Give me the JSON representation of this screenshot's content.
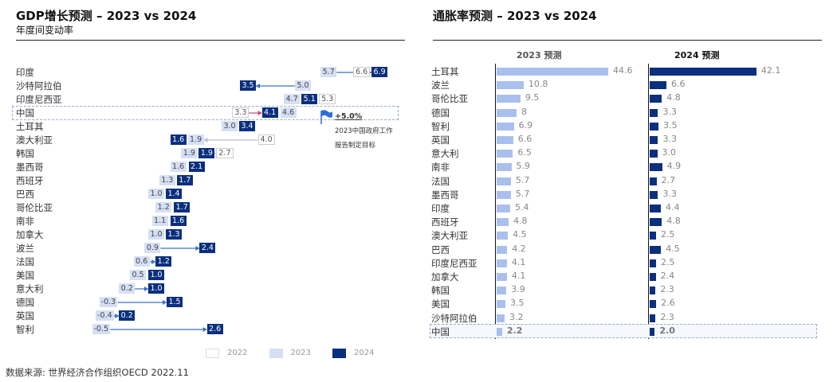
{
  "source": "数据来源: 世界经济合作组织OECD 2022.11",
  "chart_data": [
    {
      "type": "dot-range",
      "title": "GDP增长预测 – 2023 vs 2024",
      "subtitle": "年度间变动率",
      "legend": [
        "2022",
        "2023",
        "2024"
      ],
      "annotation": {
        "value": "+5.0%",
        "text1": "2023中国政府工作",
        "text2": "报告制定目标"
      },
      "countries": [
        "印度",
        "沙特阿拉伯",
        "印度尼西亚",
        "中国",
        "土耳其",
        "澳大利亚",
        "韩国",
        "墨西哥",
        "西班牙",
        "巴西",
        "哥伦比亚",
        "南非",
        "加拿大",
        "波兰",
        "法国",
        "美国",
        "意大利",
        "德国",
        "英国",
        "智利"
      ],
      "series": [
        {
          "name": "2022",
          "values": [
            6.6,
            null,
            5.3,
            3.3,
            null,
            4.0,
            2.7,
            null,
            null,
            null,
            null,
            null,
            null,
            null,
            null,
            null,
            null,
            null,
            null,
            null
          ]
        },
        {
          "name": "2023",
          "values": [
            5.7,
            5.0,
            4.7,
            4.6,
            3.0,
            1.9,
            1.9,
            1.6,
            1.3,
            1.0,
            1.2,
            1.1,
            1.0,
            0.9,
            0.6,
            0.5,
            0.2,
            -0.3,
            -0.4,
            -0.5
          ]
        },
        {
          "name": "2024",
          "values": [
            6.9,
            3.5,
            5.1,
            4.1,
            3.4,
            1.6,
            1.9,
            2.1,
            1.7,
            1.4,
            1.7,
            1.6,
            1.3,
            2.4,
            1.2,
            1.0,
            1.0,
            1.5,
            0.2,
            2.6
          ]
        }
      ],
      "colors": {
        "2022": "#ffffff",
        "2023": "#d6e0f3",
        "2024": "#0a2f7e"
      }
    },
    {
      "type": "bar",
      "title": "通胀率预测 – 2023 vs 2024",
      "categories": [
        "土耳其",
        "波兰",
        "哥伦比亚",
        "德国",
        "智利",
        "英国",
        "意大利",
        "南非",
        "法国",
        "墨西哥",
        "印度",
        "西班牙",
        "澳大利亚",
        "巴西",
        "印度尼西亚",
        "加拿大",
        "韩国",
        "美国",
        "沙特阿拉伯",
        "中国"
      ],
      "series": [
        {
          "name": "2023 预测",
          "labels": [
            "44.6",
            "10.8",
            "9.5",
            "8",
            "6.9",
            "6.6",
            "6.5",
            "5.9",
            "5.7",
            "5.7",
            "5.4",
            "4.8",
            "4.5",
            "4.2",
            "4.1",
            "4.1",
            "3.9",
            "3.5",
            "3.2",
            "2.2"
          ],
          "color": "#a9c0ee"
        },
        {
          "name": "2024 预测",
          "labels": [
            "42.1",
            "6.6",
            "4.8",
            "3.3",
            "3.5",
            "3.3",
            "3.0",
            "4.9",
            "2.7",
            "3.3",
            "4.4",
            "4.8",
            "2.5",
            "4.5",
            "2.5",
            "2.4",
            "2.3",
            "2.6",
            "2.3",
            "2.0"
          ],
          "color": "#0a2f7e"
        }
      ]
    }
  ]
}
